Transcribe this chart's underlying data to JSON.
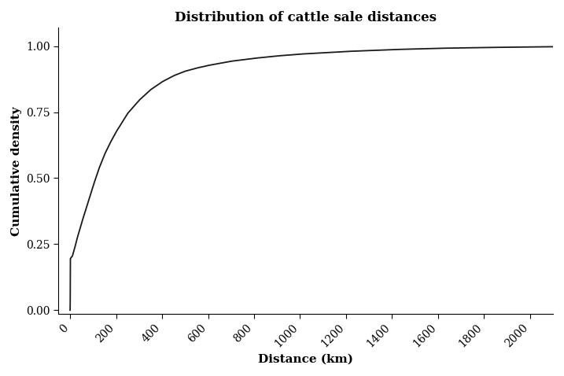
{
  "title": "Distribution of cattle sale distances",
  "xlabel": "Distance (km)",
  "ylabel": "Cumulative density",
  "xlim": [
    -50,
    2100
  ],
  "ylim": [
    -0.015,
    1.07
  ],
  "xticks": [
    0,
    200,
    400,
    600,
    800,
    1000,
    1200,
    1400,
    1600,
    1800,
    2000
  ],
  "yticks": [
    0.0,
    0.25,
    0.5,
    0.75,
    1.0
  ],
  "line_color": "#1a1a1a",
  "line_width": 1.3,
  "bg_color": "#ffffff",
  "title_fontsize": 12,
  "label_fontsize": 11,
  "tick_fontsize": 10,
  "font_family": "serif",
  "curve_points": [
    [
      0.0,
      0.0
    ],
    [
      0.5,
      0.02
    ],
    [
      1.0,
      0.195
    ],
    [
      5.0,
      0.2
    ],
    [
      10.0,
      0.205
    ],
    [
      20.0,
      0.235
    ],
    [
      30.0,
      0.27
    ],
    [
      50.0,
      0.33
    ],
    [
      75.0,
      0.4
    ],
    [
      100.0,
      0.47
    ],
    [
      125.0,
      0.535
    ],
    [
      150.0,
      0.59
    ],
    [
      175.0,
      0.635
    ],
    [
      200.0,
      0.675
    ],
    [
      250.0,
      0.745
    ],
    [
      300.0,
      0.795
    ],
    [
      350.0,
      0.835
    ],
    [
      400.0,
      0.865
    ],
    [
      450.0,
      0.888
    ],
    [
      500.0,
      0.905
    ],
    [
      550.0,
      0.917
    ],
    [
      600.0,
      0.927
    ],
    [
      700.0,
      0.943
    ],
    [
      800.0,
      0.954
    ],
    [
      900.0,
      0.963
    ],
    [
      1000.0,
      0.97
    ],
    [
      1100.0,
      0.975
    ],
    [
      1200.0,
      0.98
    ],
    [
      1400.0,
      0.987
    ],
    [
      1600.0,
      0.992
    ],
    [
      1800.0,
      0.995
    ],
    [
      2000.0,
      0.997
    ],
    [
      2100.0,
      0.998
    ]
  ]
}
